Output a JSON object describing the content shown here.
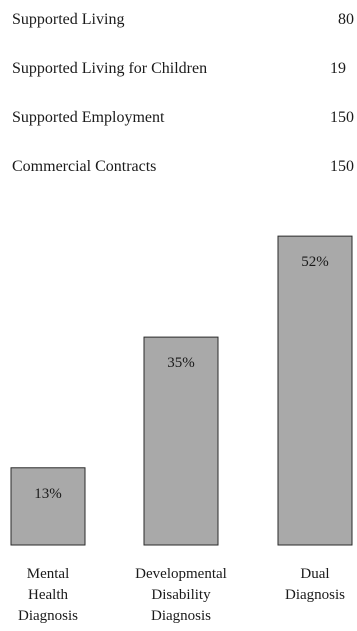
{
  "services": [
    {
      "label": "Supported Living",
      "value": "80"
    },
    {
      "label": "Supported Living for Children",
      "value": "19"
    },
    {
      "label": "Supported Employment",
      "value": "150"
    },
    {
      "label": "Commercial Contracts",
      "value": "150"
    }
  ],
  "chart_data": {
    "type": "bar",
    "categories": [
      [
        "Mental",
        "Health",
        "Diagnosis"
      ],
      [
        "Developmental",
        "Disability",
        "Diagnosis"
      ],
      [
        "Dual",
        "Diagnosis"
      ]
    ],
    "values": [
      13,
      35,
      52
    ],
    "data_labels": [
      "13%",
      "35%",
      "52%"
    ],
    "ylim": [
      0,
      55
    ],
    "grid": false,
    "bar_color": "#a9a9a9",
    "bar_border_color": "#2a2a2a"
  }
}
